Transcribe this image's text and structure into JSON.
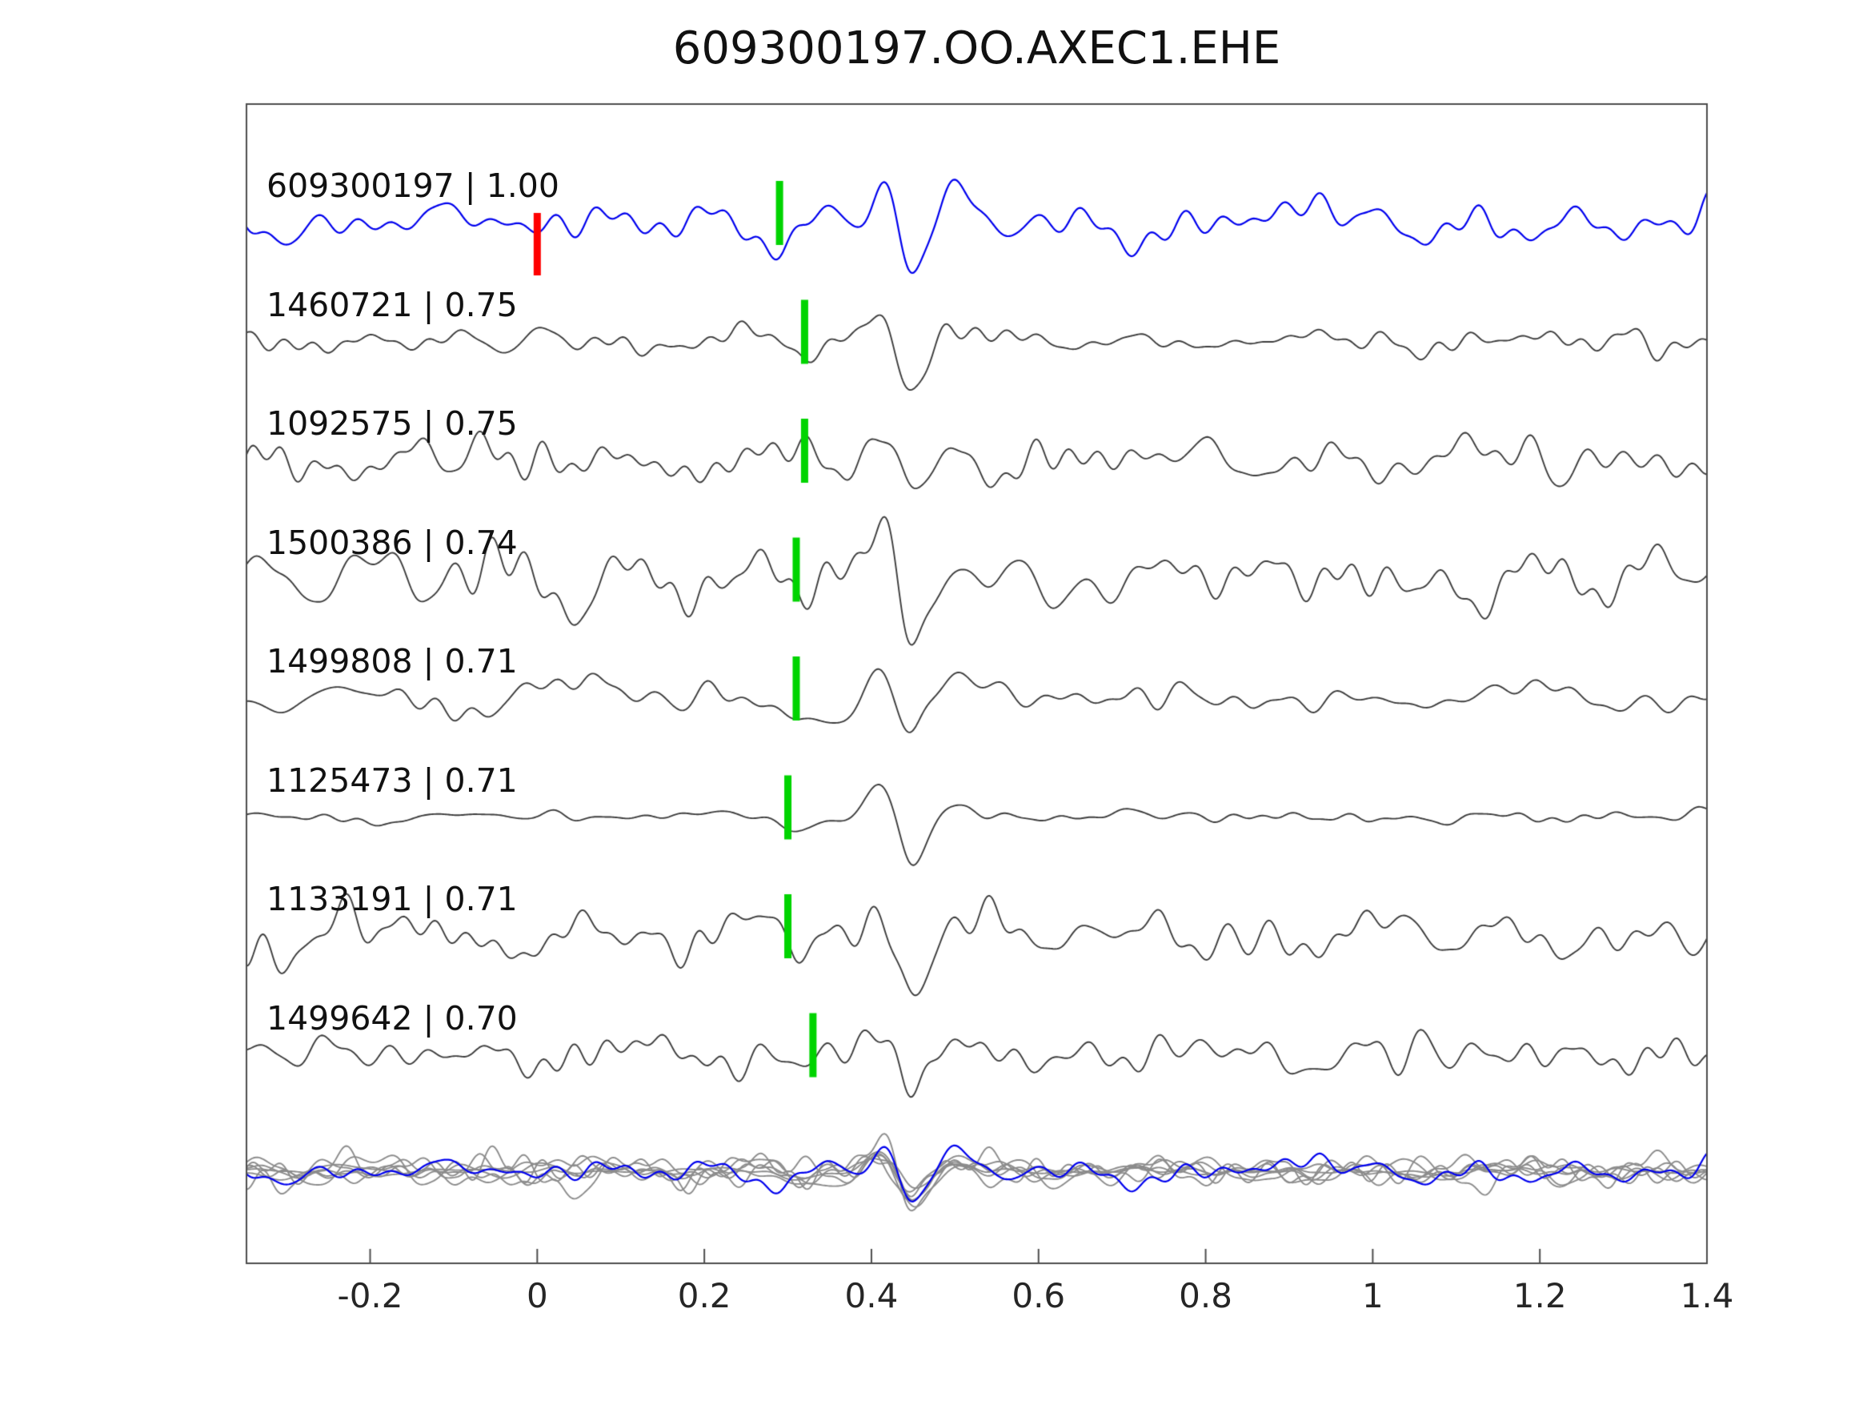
{
  "chart_data": {
    "type": "line",
    "title": "609300197.OO.AXEC1.EHE",
    "xlabel": "",
    "ylabel": "",
    "xlim": [
      -0.348,
      1.4
    ],
    "x_ticks": [
      -0.2,
      0,
      0.2,
      0.4,
      0.6,
      0.8,
      1,
      1.2,
      1.4
    ],
    "x_tick_labels": [
      "-0.2",
      "0",
      "0.2",
      "0.4",
      "0.6",
      "0.8",
      "1",
      "1.2",
      "1.4"
    ],
    "grid": false,
    "legend": false,
    "colors": {
      "template_trace": "#0000ee",
      "match_trace": "#3d3d3d",
      "overlay_gray": "#8c8c8c",
      "pick_marker": "#00d400",
      "origin_marker": "#ff0000",
      "axis_border": "#4d4d4d",
      "background": "#ffffff"
    },
    "traces": [
      {
        "label": "609300197 | 1.00",
        "event_id": "609300197",
        "correlation": 1.0,
        "role": "template",
        "pick_time": 0.29,
        "origin_marker_time": 0.0,
        "noise_level": 0.75
      },
      {
        "label": "1460721 | 0.75",
        "event_id": "1460721",
        "correlation": 0.75,
        "role": "match",
        "pick_time": 0.32,
        "noise_level": 0.45
      },
      {
        "label": "1092575 | 0.75",
        "event_id": "1092575",
        "correlation": 0.75,
        "role": "match",
        "pick_time": 0.32,
        "noise_level": 0.8
      },
      {
        "label": "1500386 | 0.74",
        "event_id": "1500386",
        "correlation": 0.74,
        "role": "match",
        "pick_time": 0.31,
        "noise_level": 0.92
      },
      {
        "label": "1499808 | 0.71",
        "event_id": "1499808",
        "correlation": 0.71,
        "role": "match",
        "pick_time": 0.31,
        "noise_level": 0.62
      },
      {
        "label": "1125473 | 0.71",
        "event_id": "1125473",
        "correlation": 0.71,
        "role": "match",
        "pick_time": 0.3,
        "noise_level": 0.2
      },
      {
        "label": "1133191 | 0.71",
        "event_id": "1133191",
        "correlation": 0.71,
        "role": "match",
        "pick_time": 0.3,
        "noise_level": 0.88
      },
      {
        "label": "1499642 | 0.70",
        "event_id": "1499642",
        "correlation": 0.7,
        "role": "match",
        "pick_time": 0.33,
        "noise_level": 0.7
      }
    ],
    "overlay_row": {
      "description": "all matched traces overlaid in gray with the template trace overlaid in blue, aligned on the common arrival near x = 0.4"
    }
  }
}
